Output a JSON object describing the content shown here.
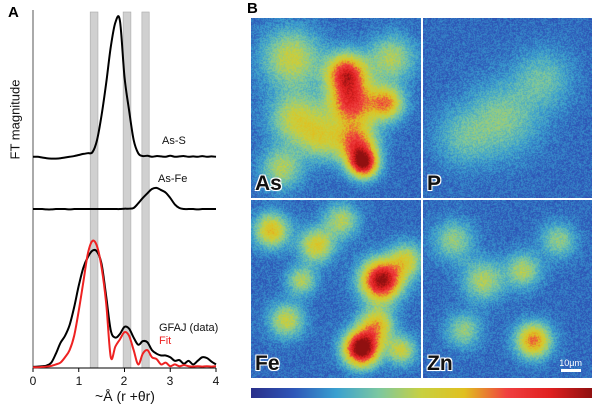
{
  "panel_labels": {
    "a": "A",
    "b": "B"
  },
  "chart_data": {
    "type": "line",
    "xlabel": "~Å (r +θr)",
    "ylabel": "FT magnitude",
    "xlim": [
      0,
      4
    ],
    "xticks": [
      "0",
      "1",
      "2",
      "3",
      "4"
    ],
    "grid": false,
    "x": [
      0,
      0.1,
      0.2,
      0.3,
      0.4,
      0.5,
      0.6,
      0.7,
      0.8,
      0.9,
      1.0,
      1.1,
      1.2,
      1.3,
      1.4,
      1.5,
      1.6,
      1.7,
      1.8,
      1.9,
      2.0,
      2.1,
      2.2,
      2.3,
      2.4,
      2.5,
      2.6,
      2.7,
      2.8,
      2.9,
      3.0,
      3.1,
      3.2,
      3.3,
      3.4,
      3.5,
      3.6,
      3.7,
      3.8,
      3.9,
      4.0
    ],
    "highlight_bands": [
      [
        1.25,
        1.42
      ],
      [
        1.97,
        2.14
      ],
      [
        2.38,
        2.54
      ]
    ],
    "band_color": "#d0d0d0",
    "series": [
      {
        "name": "As-S",
        "color": "#000000",
        "values": [
          5.9,
          5.9,
          5.88,
          5.86,
          5.85,
          5.85,
          5.86,
          5.88,
          5.9,
          5.92,
          5.95,
          5.98,
          6.0,
          6.03,
          6.37,
          7.07,
          7.96,
          8.97,
          9.65,
          9.7,
          8.13,
          7.2,
          6.37,
          6.0,
          5.92,
          5.93,
          5.9,
          5.92,
          5.91,
          5.9,
          5.93,
          5.9,
          5.91,
          5.92,
          5.9,
          5.91,
          5.9,
          5.92,
          5.9,
          5.91,
          5.9
        ]
      },
      {
        "name": "As-Fe",
        "color": "#000000",
        "values": [
          4.44,
          4.44,
          4.44,
          4.43,
          4.43,
          4.44,
          4.44,
          4.44,
          4.43,
          4.44,
          4.44,
          4.44,
          4.44,
          4.44,
          4.44,
          4.44,
          4.44,
          4.44,
          4.44,
          4.44,
          4.45,
          4.45,
          4.47,
          4.6,
          4.75,
          4.88,
          5.0,
          5.03,
          4.97,
          4.9,
          4.75,
          4.57,
          4.47,
          4.44,
          4.44,
          4.44,
          4.43,
          4.44,
          4.44,
          4.44,
          4.44
        ]
      },
      {
        "name": "GFAJ (data)",
        "color": "#000000",
        "values": [
          0.03,
          0.04,
          0.05,
          0.07,
          0.15,
          0.4,
          0.7,
          0.9,
          1.2,
          1.7,
          2.3,
          2.8,
          3.1,
          3.28,
          3.25,
          2.9,
          2.0,
          1.05,
          0.85,
          0.95,
          1.15,
          1.1,
          0.85,
          0.65,
          0.75,
          0.72,
          0.5,
          0.4,
          0.35,
          0.35,
          0.3,
          0.2,
          0.22,
          0.12,
          0.2,
          0.1,
          0.2,
          0.3,
          0.28,
          0.18,
          0.1
        ]
      },
      {
        "name": "Fit",
        "color": "#ee2222",
        "values": [
          0.02,
          0.02,
          0.03,
          0.04,
          0.06,
          0.1,
          0.15,
          0.3,
          0.5,
          0.9,
          1.6,
          2.4,
          3.2,
          3.55,
          3.4,
          2.8,
          1.8,
          0.3,
          0.6,
          0.8,
          1.0,
          0.9,
          0.5,
          0.1,
          0.4,
          0.5,
          0.3,
          0.25,
          0.1,
          0.15,
          0.05,
          0.1,
          0.05,
          0.08,
          0.05,
          0.04,
          0.05,
          0.04,
          0.05,
          0.04,
          0.05
        ]
      }
    ]
  },
  "maps": [
    {
      "element": "As"
    },
    {
      "element": "P"
    },
    {
      "element": "Fe"
    },
    {
      "element": "Zn",
      "scale_bar": "10μm"
    }
  ],
  "colorbar": {
    "colors": [
      "#2a2f8a",
      "#2e56b8",
      "#3aa0d0",
      "#7cc8a0",
      "#c8d040",
      "#e0c020",
      "#f04040",
      "#e02020",
      "#901010"
    ]
  }
}
